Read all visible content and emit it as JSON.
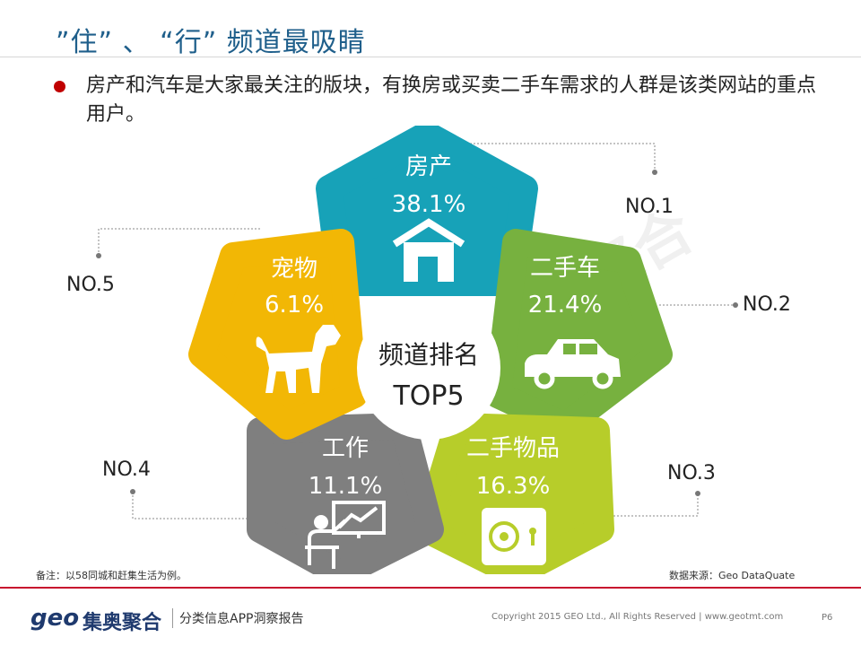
{
  "title": "”住”  、 “行”  频道最吸睛",
  "description": "房产和汽车是大家最关注的版块，有换房或买卖二手车需求的人群是该类网站的重点用户。",
  "watermark": "奥聚合",
  "center": {
    "line1": "频道排名",
    "line2": "TOP5"
  },
  "petals": [
    {
      "name": "房产",
      "value": "38.1%",
      "rank": "NO.1",
      "color": "#17a2b8"
    },
    {
      "name": "二手车",
      "value": "21.4%",
      "rank": "NO.2",
      "color": "#77b13f"
    },
    {
      "name": "二手物品",
      "value": "16.3%",
      "rank": "NO.3",
      "color": "#b7cd2a"
    },
    {
      "name": "工作",
      "value": "11.1%",
      "rank": "NO.4",
      "color": "#7f7f7f"
    },
    {
      "name": "宠物",
      "value": "6.1%",
      "rank": "NO.5",
      "color": "#f2b705"
    }
  ],
  "footnote": "备注：以58同城和赶集生活为例。",
  "source": "数据来源：Geo DataQuate",
  "footer": {
    "logo_latin": "geo",
    "logo_cn": "集奥聚合",
    "report": "分类信息APP洞察报告",
    "copyright": "Copyright 2015 GEO Ltd., All Rights Reserved  |  www.geotmt.com",
    "page": "P6"
  }
}
